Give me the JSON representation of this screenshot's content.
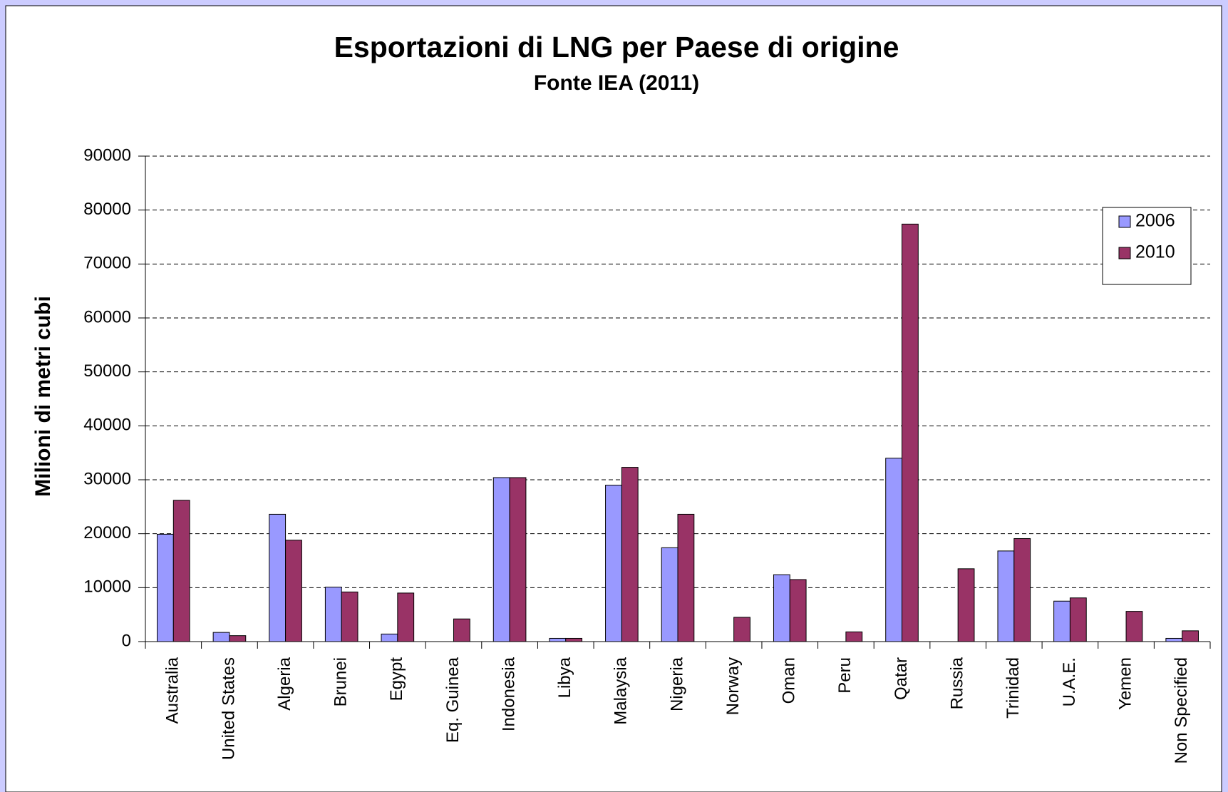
{
  "chart_data": {
    "type": "bar",
    "title": "Esportazioni di LNG per Paese di origine",
    "subtitle": "Fonte IEA (2011)",
    "y_label": "Milioni di metri cubi",
    "categories": [
      "Australia",
      "United States",
      "Algeria",
      "Brunei",
      "Egypt",
      "Eq. Guinea",
      "Indonesia",
      "Libya",
      "Malaysia",
      "Nigeria",
      "Norway",
      "Oman",
      "Peru",
      "Qatar",
      "Russia",
      "Trinidad",
      "U.A.E.",
      "Yemen",
      "Non Specified"
    ],
    "series": [
      {
        "name": "2006",
        "color": "#9999ff",
        "values": [
          19900,
          1700,
          23600,
          10100,
          1400,
          null,
          30400,
          600,
          29000,
          17400,
          null,
          12400,
          null,
          34000,
          null,
          16800,
          7500,
          null,
          600
        ]
      },
      {
        "name": "2010",
        "color": "#993366",
        "values": [
          26200,
          1100,
          18800,
          9200,
          9000,
          4200,
          30400,
          600,
          32300,
          23600,
          4500,
          11500,
          1800,
          77400,
          13500,
          19100,
          8100,
          5600,
          2000
        ]
      }
    ],
    "ylim": [
      0,
      90000
    ],
    "yticks": [
      0,
      10000,
      20000,
      30000,
      40000,
      50000,
      60000,
      70000,
      80000,
      90000
    ],
    "grid": true,
    "legend": "right"
  }
}
